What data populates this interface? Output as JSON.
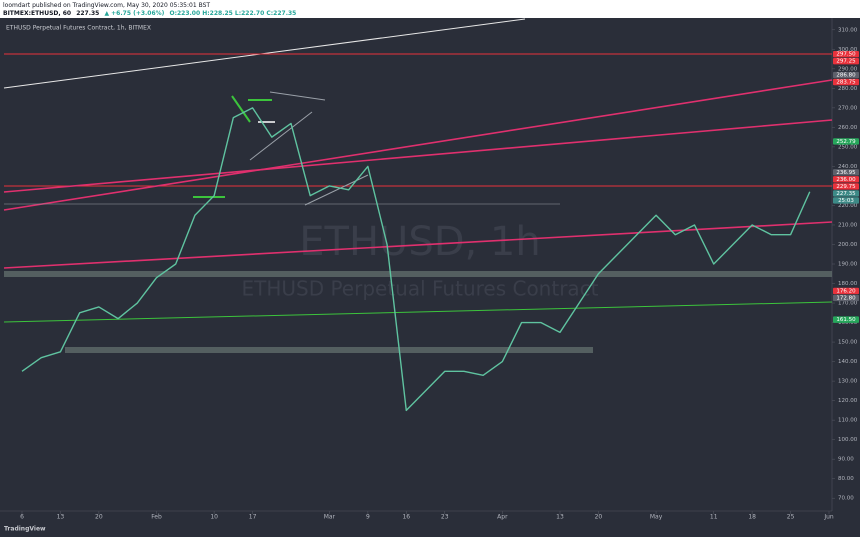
{
  "header": {
    "publisher": "loomdart published on TradingView.com, May 30, 2020 05:35:01 BST",
    "symbol": "BITMEX:ETHUSD, 60",
    "last": "227.35",
    "change": "▲ +6.75 (+3.06%)",
    "ohlc": "O:223.00 H:228.25 L:222.70 C:227.35"
  },
  "chart_data": {
    "type": "line",
    "legend_text": "ETHUSD Perpetual Futures Contract, 1h, BITMEX",
    "watermark": "ETHUSD, 1h",
    "watermark_sub": "ETHUSD Perpetual Futures Contract",
    "categories": [
      "6",
      null,
      "13",
      null,
      "20",
      null,
      null,
      "Feb",
      null,
      null,
      "10",
      null,
      "17",
      null,
      null,
      null,
      "Mar",
      null,
      "9",
      null,
      "16",
      null,
      "23",
      null,
      null,
      "Apr",
      null,
      null,
      "13",
      null,
      "20",
      null,
      null,
      "May",
      null,
      null,
      "11",
      null,
      "18",
      null,
      "25",
      null,
      "Jun"
    ],
    "series": [
      {
        "name": "ETHUSD",
        "color": "#5fc3a0",
        "values": [
          135,
          142,
          145,
          165,
          168,
          162,
          170,
          183,
          190,
          215,
          225,
          265,
          270,
          255,
          262,
          225,
          230,
          228,
          240,
          200,
          115,
          125,
          135,
          135,
          133,
          140,
          160,
          160,
          155,
          170,
          185,
          195,
          205,
          215,
          205,
          210,
          190,
          200,
          210,
          205,
          205,
          227,
          null
        ]
      }
    ],
    "ylim": [
      65,
      315
    ],
    "yticks": [
      {
        "value": 70,
        "label": "70.00"
      },
      {
        "value": 80,
        "label": "80.00"
      },
      {
        "value": 90,
        "label": "90.00"
      },
      {
        "value": 100,
        "label": "100.00"
      },
      {
        "value": 110,
        "label": "110.00"
      },
      {
        "value": 120,
        "label": "120.00"
      },
      {
        "value": 130,
        "label": "130.00"
      },
      {
        "value": 140,
        "label": "140.00"
      },
      {
        "value": 150,
        "label": "150.00"
      },
      {
        "value": 160,
        "label": "160.00"
      },
      {
        "value": 170,
        "label": "170.00"
      },
      {
        "value": 180,
        "label": "180.00"
      },
      {
        "value": 190,
        "label": "190.00"
      },
      {
        "value": 200,
        "label": "200.00"
      },
      {
        "value": 210,
        "label": "210.00"
      },
      {
        "value": 220,
        "label": "220.00"
      },
      {
        "value": 230,
        "label": "230.00"
      },
      {
        "value": 240,
        "label": "240.00"
      },
      {
        "value": 250,
        "label": "250.00"
      },
      {
        "value": 260,
        "label": "260.00"
      },
      {
        "value": 270,
        "label": "270.00"
      },
      {
        "value": 280,
        "label": "280.00"
      },
      {
        "value": 290,
        "label": "290.00"
      },
      {
        "value": 300,
        "label": "300.00"
      },
      {
        "value": 310,
        "label": "310.00"
      }
    ],
    "price_badges": [
      {
        "value": 297.5,
        "label": "297.50",
        "color": "#e8323c"
      },
      {
        "value": 297.25,
        "label": "297.25",
        "color": "#e8323c"
      },
      {
        "value": 286.8,
        "label": "286.80",
        "color": "#5d606b"
      },
      {
        "value": 283.75,
        "label": "283.75",
        "color": "#e8323c"
      },
      {
        "value": 252.79,
        "label": "252.79",
        "color": "#26a65b"
      },
      {
        "value": 236.95,
        "label": "236.95",
        "color": "#5d606b"
      },
      {
        "value": 236,
        "label": "236.00",
        "color": "#e8323c"
      },
      {
        "value": 229.75,
        "label": "229.75",
        "color": "#e8323c"
      },
      {
        "value": 227.35,
        "label": "227.35",
        "color": "#3d8a87"
      },
      {
        "value": 176.2,
        "label": "176.20",
        "color": "#e8323c"
      },
      {
        "value": 172.8,
        "label": "172.80",
        "color": "#5d606b"
      },
      {
        "value": 161.5,
        "label": "161.50",
        "color": "#26a65b"
      }
    ],
    "countdown": "25:03",
    "grid": false
  },
  "footer": {
    "brand": "TradingView"
  }
}
